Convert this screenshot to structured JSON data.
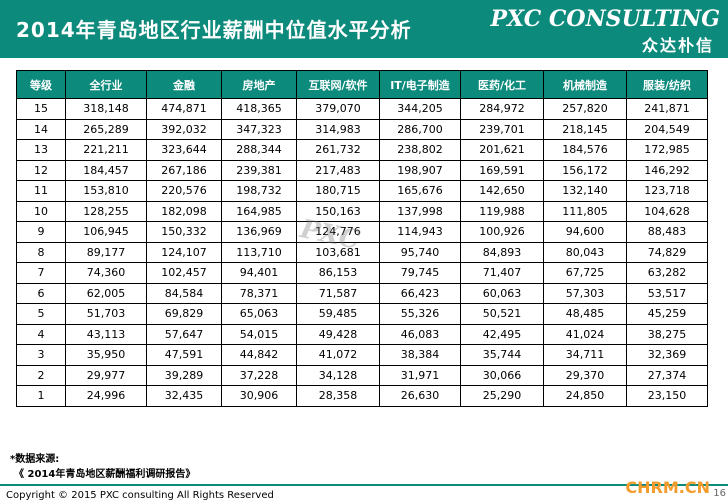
{
  "header": {
    "title": "2014年青岛地区行业薪酬中位值水平分析",
    "logo_main": "PXC CONSULTING",
    "logo_cn": "众达朴信"
  },
  "watermark": "PXC",
  "table": {
    "columns": [
      "等级",
      "全行业",
      "金融",
      "房地产",
      "互联网/软件",
      "IT/电子制造",
      "医药/化工",
      "机械制造",
      "服装/纺织"
    ],
    "rows": [
      [
        "15",
        "318,148",
        "474,871",
        "418,365",
        "379,070",
        "344,205",
        "284,972",
        "257,820",
        "241,871"
      ],
      [
        "14",
        "265,289",
        "392,032",
        "347,323",
        "314,983",
        "286,700",
        "239,701",
        "218,145",
        "204,549"
      ],
      [
        "13",
        "221,211",
        "323,644",
        "288,344",
        "261,732",
        "238,802",
        "201,621",
        "184,576",
        "172,985"
      ],
      [
        "12",
        "184,457",
        "267,186",
        "239,381",
        "217,483",
        "198,907",
        "169,591",
        "156,172",
        "146,292"
      ],
      [
        "11",
        "153,810",
        "220,576",
        "198,732",
        "180,715",
        "165,676",
        "142,650",
        "132,140",
        "123,718"
      ],
      [
        "10",
        "128,255",
        "182,098",
        "164,985",
        "150,163",
        "137,998",
        "119,988",
        "111,805",
        "104,628"
      ],
      [
        "9",
        "106,945",
        "150,332",
        "136,969",
        "124,776",
        "114,943",
        "100,926",
        "94,600",
        "88,483"
      ],
      [
        "8",
        "89,177",
        "124,107",
        "113,710",
        "103,681",
        "95,740",
        "84,893",
        "80,043",
        "74,829"
      ],
      [
        "7",
        "74,360",
        "102,457",
        "94,401",
        "86,153",
        "79,745",
        "71,407",
        "67,725",
        "63,282"
      ],
      [
        "6",
        "62,005",
        "84,584",
        "78,371",
        "71,587",
        "66,423",
        "60,063",
        "57,303",
        "53,517"
      ],
      [
        "5",
        "51,703",
        "69,829",
        "65,063",
        "59,485",
        "55,326",
        "50,521",
        "48,485",
        "45,259"
      ],
      [
        "4",
        "43,113",
        "57,647",
        "54,015",
        "49,428",
        "46,083",
        "42,495",
        "41,024",
        "38,275"
      ],
      [
        "3",
        "35,950",
        "47,591",
        "44,842",
        "41,072",
        "38,384",
        "35,744",
        "34,711",
        "32,369"
      ],
      [
        "2",
        "29,977",
        "39,289",
        "37,228",
        "34,128",
        "31,971",
        "30,066",
        "29,370",
        "27,374"
      ],
      [
        "1",
        "24,996",
        "32,435",
        "30,906",
        "28,358",
        "26,630",
        "25,290",
        "24,850",
        "23,150"
      ]
    ]
  },
  "source": {
    "label": "*数据来源:",
    "report": "《 2014年青岛地区薪酬福利调研报告》"
  },
  "footer": {
    "copyright": "Copyright © 2015  PXC consulting All Rights Reserved",
    "site": "CHRM.CN",
    "page": "16"
  },
  "colors": {
    "accent": "#0c8a7c",
    "site": "#f39b2b"
  }
}
